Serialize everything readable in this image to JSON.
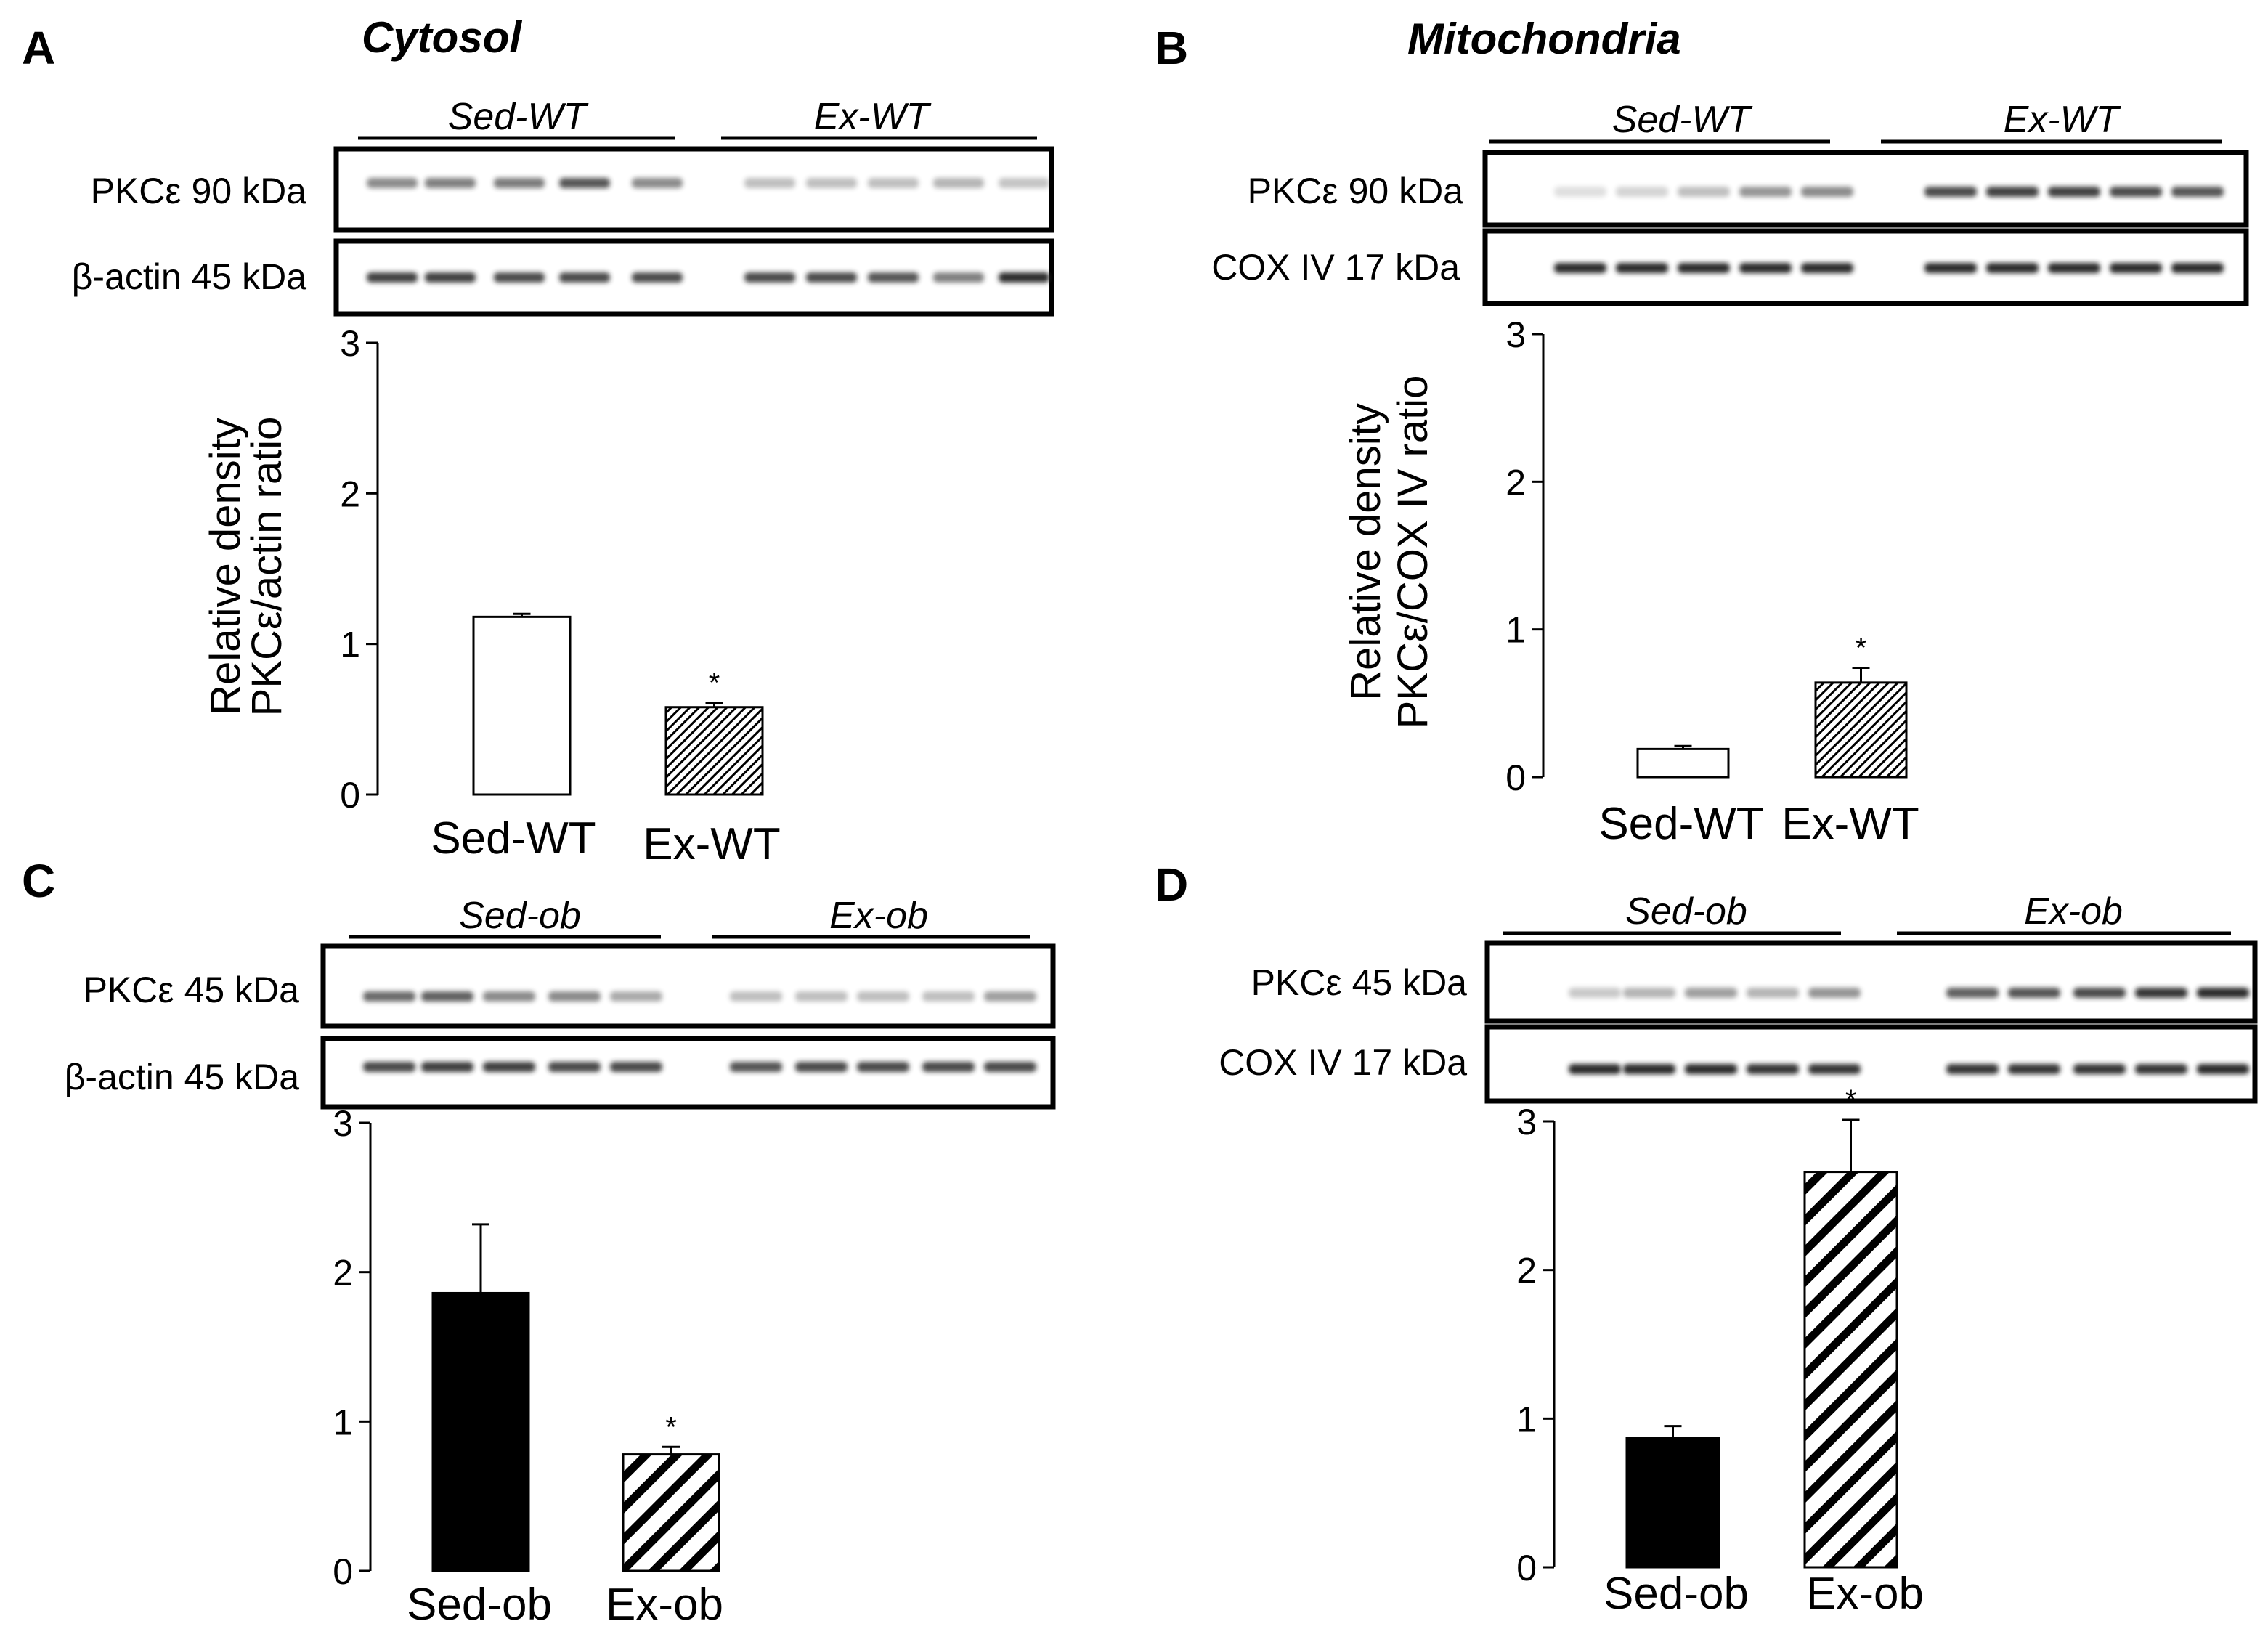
{
  "panels": [
    {
      "letter": "A",
      "title": "Cytosol",
      "groups": [
        "Sed-WT",
        "Ex-WT"
      ],
      "blot_rows": [
        "PKCε 90 kDa",
        "β-actin 45 kDa"
      ],
      "ylabel": [
        "Relative density",
        "PKCε/actin ratio"
      ]
    },
    {
      "letter": "B",
      "title": "Mitochondria",
      "groups": [
        "Sed-WT",
        "Ex-WT"
      ],
      "blot_rows": [
        "PKCε 90 kDa",
        "COX IV 17 kDa"
      ],
      "ylabel": [
        "Relative density",
        "PKCε/COX IV ratio"
      ]
    },
    {
      "letter": "C",
      "title": "",
      "groups": [
        "Sed-ob",
        "Ex-ob"
      ],
      "blot_rows": [
        "PKCε 45 kDa",
        "β-actin 45 kDa"
      ],
      "ylabel": []
    },
    {
      "letter": "D",
      "title": "",
      "groups": [
        "Sed-ob",
        "Ex-ob"
      ],
      "blot_rows": [
        "PKCε 45 kDa",
        "COX IV 17 kDa"
      ],
      "ylabel": []
    }
  ],
  "chart_data": [
    {
      "type": "bar",
      "panel": "A",
      "categories": [
        "Sed-WT",
        "Ex-WT"
      ],
      "values": [
        1.18,
        0.58
      ],
      "errors": [
        0.02,
        0.03
      ],
      "significance": [
        "",
        "*"
      ],
      "fills": [
        "white",
        "fine-hatch"
      ],
      "ylim": [
        0,
        3
      ],
      "yticks": [
        "0",
        "1",
        "2",
        "3"
      ]
    },
    {
      "type": "bar",
      "panel": "B",
      "categories": [
        "Sed-WT",
        "Ex-WT"
      ],
      "values": [
        0.19,
        0.64
      ],
      "errors": [
        0.02,
        0.1
      ],
      "significance": [
        "",
        "*"
      ],
      "fills": [
        "white",
        "fine-hatch"
      ],
      "ylim": [
        0,
        3
      ],
      "yticks": [
        "0",
        "1",
        "2",
        "3"
      ]
    },
    {
      "type": "bar",
      "panel": "C",
      "categories": [
        "Sed-ob",
        "Ex-ob"
      ],
      "values": [
        1.86,
        0.78
      ],
      "errors": [
        0.46,
        0.05
      ],
      "significance": [
        "",
        "*"
      ],
      "fills": [
        "black",
        "wide-hatch"
      ],
      "ylim": [
        0,
        3
      ],
      "yticks": [
        "0",
        "1",
        "2",
        "3"
      ]
    },
    {
      "type": "bar",
      "panel": "D",
      "categories": [
        "Sed-ob",
        "Ex-ob"
      ],
      "values": [
        0.87,
        2.66
      ],
      "errors": [
        0.08,
        0.35
      ],
      "significance": [
        "",
        "*"
      ],
      "fills": [
        "black",
        "wide-hatch"
      ],
      "ylim": [
        0,
        3
      ],
      "yticks": [
        "0",
        "1",
        "2",
        "3"
      ]
    }
  ],
  "colors": {
    "ink": "#000000",
    "background": "#ffffff",
    "band": "#2a2a2a"
  }
}
